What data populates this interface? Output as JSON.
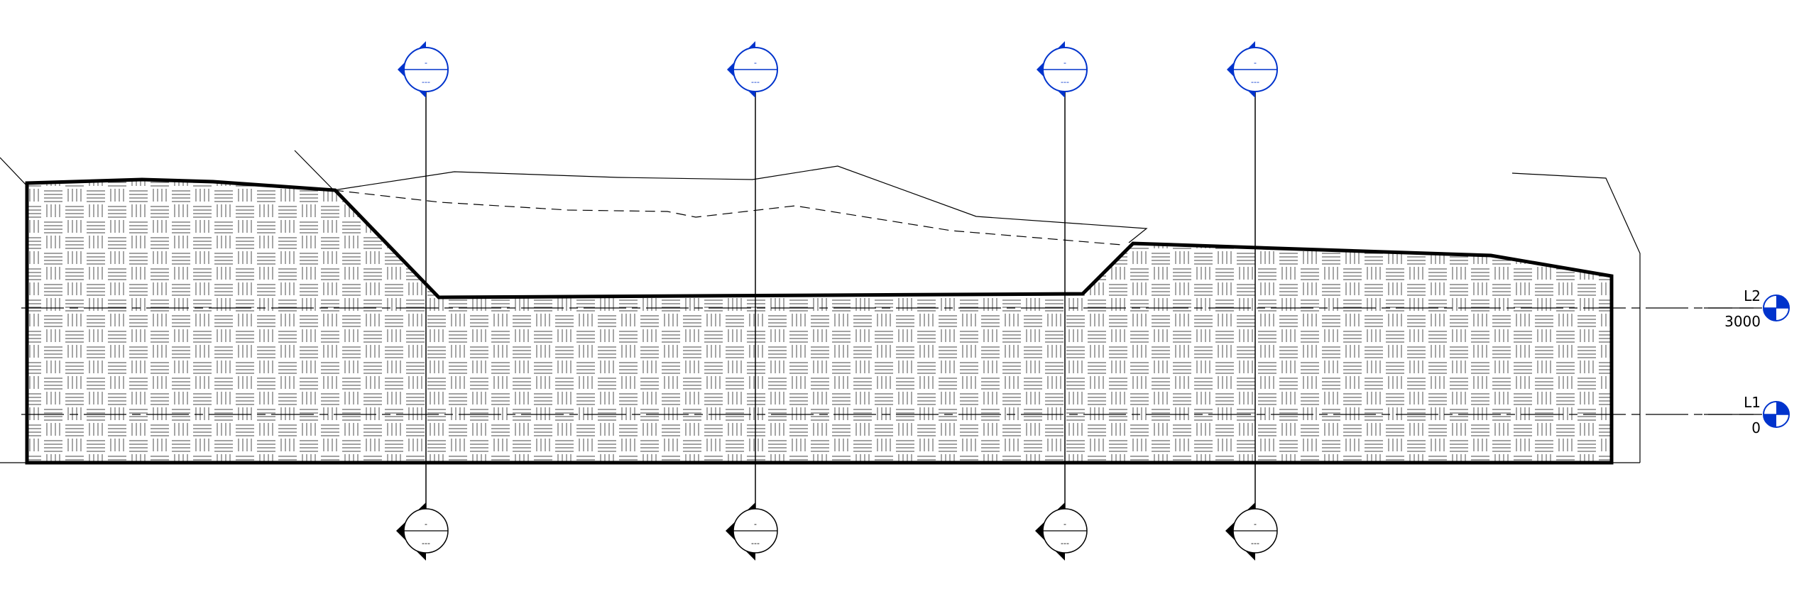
{
  "levels": [
    {
      "name": "L2",
      "elevation": "3000"
    },
    {
      "name": "L1",
      "elevation": "0"
    }
  ],
  "section_marks": [
    {
      "top_number": "-",
      "top_sheet": "---",
      "bottom_number": "-",
      "bottom_sheet": "---"
    },
    {
      "top_number": "-",
      "top_sheet": "---",
      "bottom_number": "-",
      "bottom_sheet": "---"
    },
    {
      "top_number": "-",
      "top_sheet": "---",
      "bottom_number": "-",
      "bottom_sheet": "---"
    },
    {
      "top_number": "-",
      "top_sheet": "---",
      "bottom_number": "-",
      "bottom_sheet": "---"
    }
  ],
  "colors": {
    "section_head": "#0033cc",
    "level_marker": "#0033cc",
    "lines": "#000000",
    "hatch": "#6a6a6a"
  }
}
